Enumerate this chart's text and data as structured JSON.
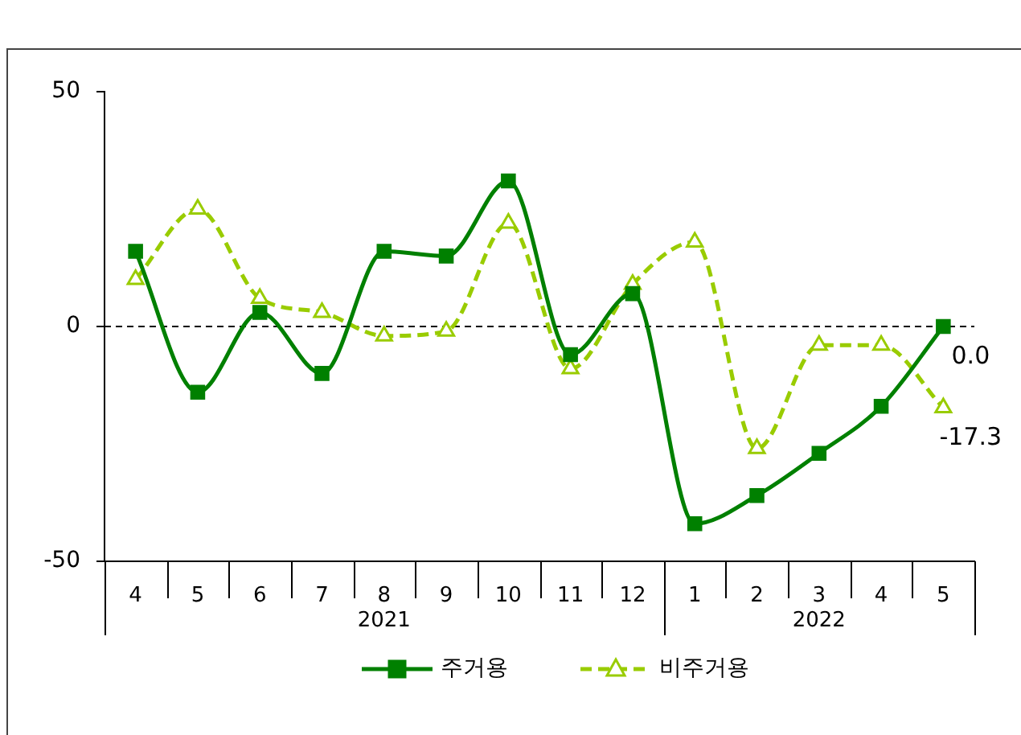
{
  "chart_data": {
    "type": "line",
    "categories": [
      "4",
      "5",
      "6",
      "7",
      "8",
      "9",
      "10",
      "11",
      "12",
      "1",
      "2",
      "3",
      "4",
      "5"
    ],
    "annotations": [
      "2021",
      "2022"
    ],
    "ylim": [
      -50,
      50
    ],
    "yticks": [
      -50,
      0,
      50
    ],
    "legend": "bottom",
    "ref_lines": [
      {
        "axis": "y",
        "value": 0,
        "color": "#000000",
        "line_style": "dashed"
      }
    ],
    "series": [
      {
        "name": "주거용",
        "color": "#008000",
        "marker": "square",
        "line_style": "solid",
        "values": [
          16,
          -14,
          3,
          -10,
          16,
          15,
          31,
          -6,
          7,
          -42,
          -36,
          -27,
          -17,
          0.0
        ],
        "value_labels": [
          null,
          null,
          null,
          null,
          null,
          null,
          null,
          null,
          null,
          null,
          null,
          null,
          null,
          "0.0"
        ]
      },
      {
        "name": "비주거용",
        "color": "#99cc00",
        "marker": "triangle",
        "line_style": "dashed",
        "values": [
          10,
          25,
          6,
          3,
          -2,
          -1,
          22,
          -9,
          9,
          18,
          -26,
          -4,
          -4,
          -17.3
        ],
        "value_labels": [
          null,
          null,
          null,
          null,
          null,
          null,
          null,
          null,
          null,
          null,
          null,
          null,
          null,
          "-17.3"
        ]
      }
    ]
  }
}
